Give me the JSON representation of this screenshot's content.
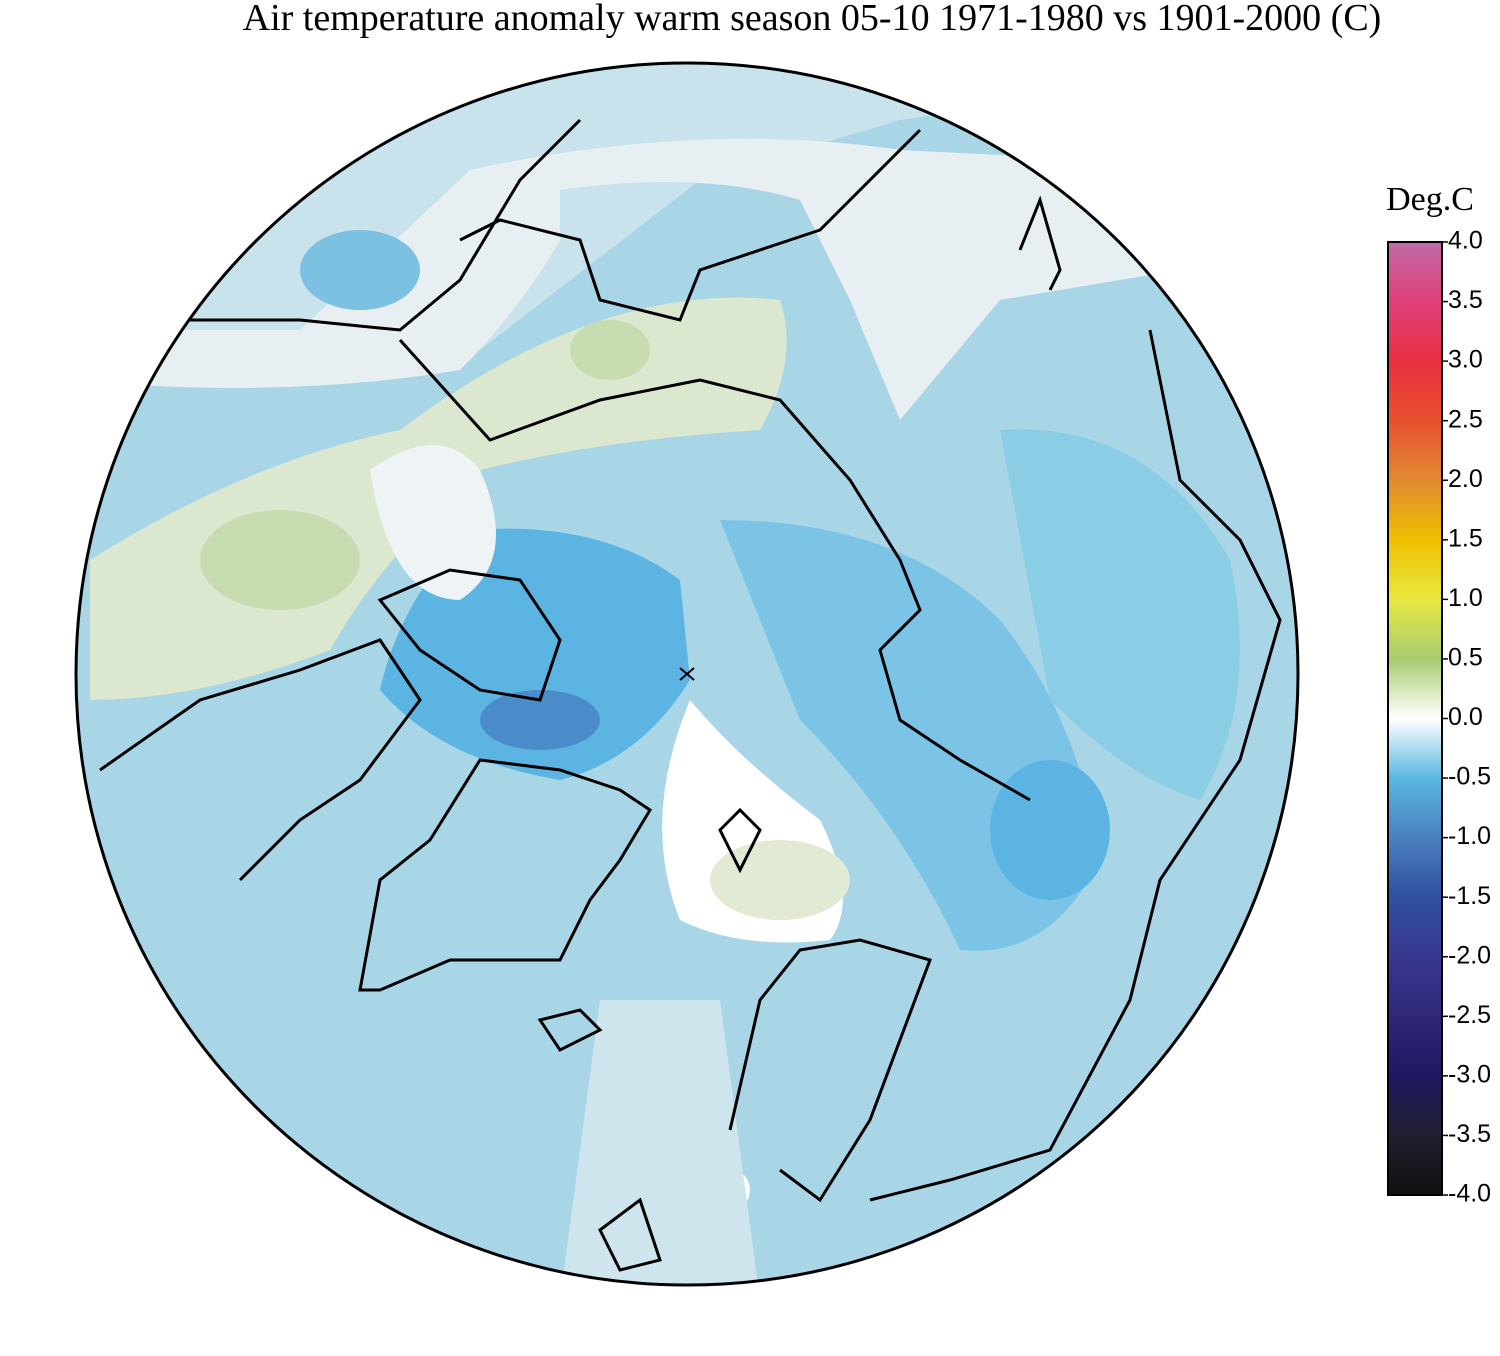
{
  "title": "Air temperature anomaly warm season 05-10 1971-1980 vs 1901-2000 (C)",
  "colorbar": {
    "label": "Deg.C",
    "lim": [
      -4,
      4
    ],
    "ticks": [
      {
        "value": 4,
        "label": "4.0"
      },
      {
        "value": 3.5,
        "label": "3.5"
      },
      {
        "value": 3,
        "label": "3.0"
      },
      {
        "value": 2.5,
        "label": "2.5"
      },
      {
        "value": 2,
        "label": "2.0"
      },
      {
        "value": 1.5,
        "label": "1.5"
      },
      {
        "value": 1,
        "label": "1.0"
      },
      {
        "value": 0.5,
        "label": "0.5"
      },
      {
        "value": 0,
        "label": "0.0"
      },
      {
        "value": -0.5,
        "label": "-0.5"
      },
      {
        "value": -1,
        "label": "-1.0"
      },
      {
        "value": -1.5,
        "label": "-1.5"
      },
      {
        "value": -2,
        "label": "-2.0"
      },
      {
        "value": -2.5,
        "label": "-2.5"
      },
      {
        "value": -3,
        "label": "-3.0"
      },
      {
        "value": -3.5,
        "label": "-3.5"
      },
      {
        "value": -4,
        "label": "-4.0"
      }
    ],
    "colors": [
      "#c06aa6",
      "#e0407a",
      "#e83040",
      "#e85030",
      "#e08a30",
      "#f0c000",
      "#e8e840",
      "#a8cc70",
      "#ffffff",
      "#5ab8e0",
      "#4a80c0",
      "#3050a0",
      "#383890",
      "#302878",
      "#201860",
      "#202030",
      "#101010"
    ]
  }
}
